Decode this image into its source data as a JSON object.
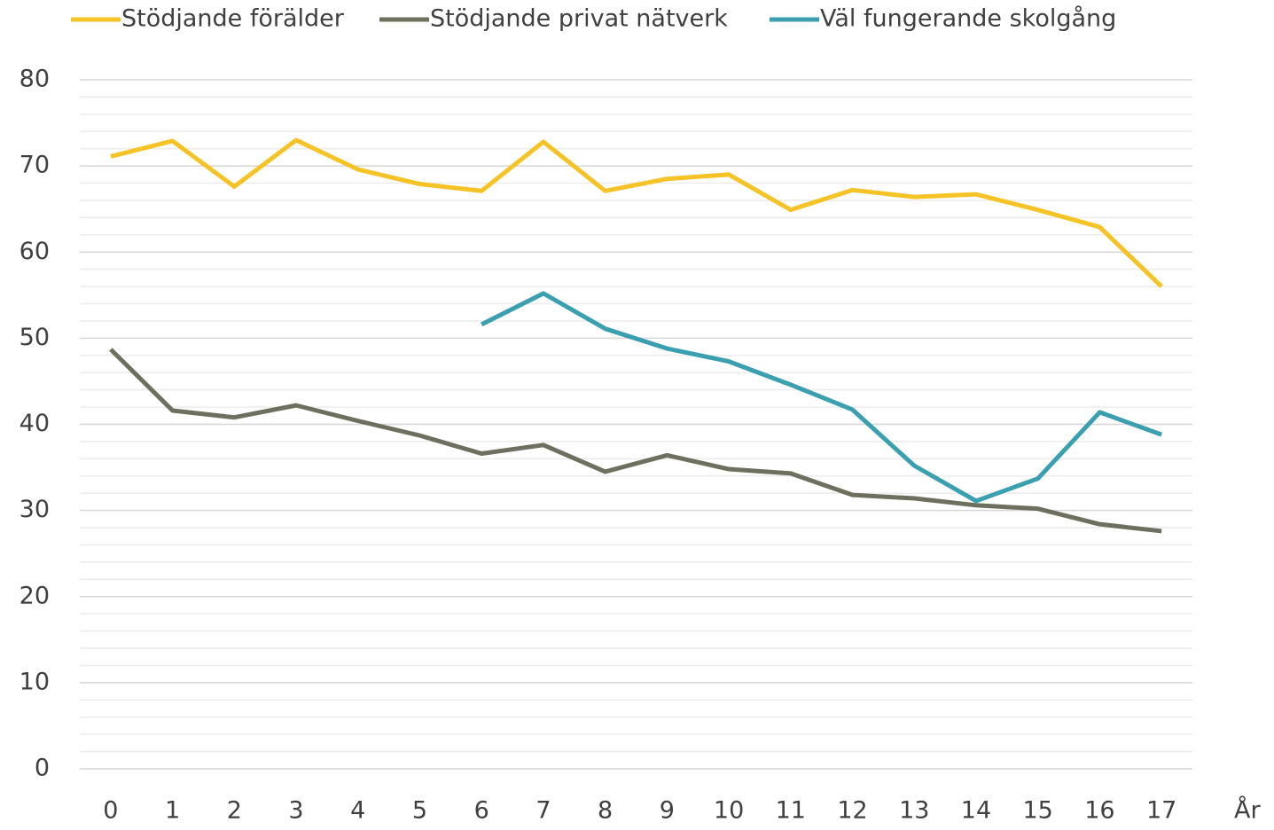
{
  "chart_data": {
    "type": "line",
    "x_label": "År",
    "categories": [
      "0",
      "1",
      "2",
      "3",
      "4",
      "5",
      "6",
      "7",
      "8",
      "9",
      "10",
      "11",
      "12",
      "13",
      "14",
      "15",
      "16",
      "17"
    ],
    "series": [
      {
        "name": "Stödjande förälder",
        "color": "#f5c325",
        "values": [
          71.1,
          72.9,
          67.6,
          73.0,
          69.6,
          67.9,
          67.1,
          72.8,
          67.1,
          68.5,
          69.0,
          64.9,
          67.2,
          66.4,
          66.7,
          64.9,
          62.9,
          56.0
        ]
      },
      {
        "name": "Stödjande privat nätverk",
        "color": "#6e6f5f",
        "values": [
          48.7,
          41.6,
          40.8,
          42.2,
          40.4,
          38.7,
          36.6,
          37.6,
          34.5,
          36.4,
          34.8,
          34.3,
          31.8,
          31.4,
          30.6,
          30.2,
          28.4,
          27.6
        ]
      },
      {
        "name": "Väl fungerande skolgång",
        "color": "#3a9fae",
        "values": [
          null,
          null,
          null,
          null,
          null,
          null,
          51.6,
          55.2,
          51.1,
          48.8,
          47.3,
          44.6,
          41.7,
          35.2,
          31.1,
          33.7,
          41.4,
          38.8
        ]
      }
    ],
    "ylim": [
      0,
      80
    ],
    "yticks": [
      0,
      10,
      20,
      30,
      40,
      50,
      60,
      70,
      80
    ],
    "yticks_minor": [
      2,
      4,
      6,
      8,
      12,
      14,
      16,
      18,
      22,
      24,
      26,
      28,
      32,
      34,
      36,
      38,
      42,
      44,
      46,
      48,
      52,
      54,
      56,
      58,
      62,
      64,
      66,
      68,
      72,
      74,
      76,
      78
    ],
    "grid": true,
    "legend": "top"
  }
}
